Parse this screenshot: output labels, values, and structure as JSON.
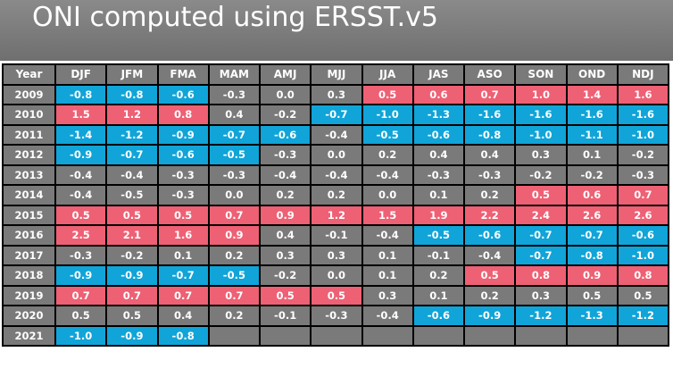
{
  "title": "ONI computed using ERSST.v5",
  "colors": {
    "cold": "#10a4d8",
    "warm": "#ee6074",
    "neutral": "#7a7a7a"
  },
  "table": {
    "year_header": "Year",
    "seasons": [
      "DJF",
      "JFM",
      "FMA",
      "MAM",
      "AMJ",
      "MJJ",
      "JJA",
      "JAS",
      "ASO",
      "SON",
      "OND",
      "NDJ"
    ],
    "rows": [
      {
        "year": "2009",
        "values": [
          "-0.8",
          "-0.8",
          "-0.6",
          "-0.3",
          "0.0",
          "0.3",
          "0.5",
          "0.6",
          "0.7",
          "1.0",
          "1.4",
          "1.6"
        ],
        "phase": [
          "cold",
          "cold",
          "cold",
          "neutral",
          "neutral",
          "neutral",
          "warm",
          "warm",
          "warm",
          "warm",
          "warm",
          "warm"
        ]
      },
      {
        "year": "2010",
        "values": [
          "1.5",
          "1.2",
          "0.8",
          "0.4",
          "-0.2",
          "-0.7",
          "-1.0",
          "-1.3",
          "-1.6",
          "-1.6",
          "-1.6",
          "-1.6"
        ],
        "phase": [
          "warm",
          "warm",
          "warm",
          "neutral",
          "neutral",
          "cold",
          "cold",
          "cold",
          "cold",
          "cold",
          "cold",
          "cold"
        ]
      },
      {
        "year": "2011",
        "values": [
          "-1.4",
          "-1.2",
          "-0.9",
          "-0.7",
          "-0.6",
          "-0.4",
          "-0.5",
          "-0.6",
          "-0.8",
          "-1.0",
          "-1.1",
          "-1.0"
        ],
        "phase": [
          "cold",
          "cold",
          "cold",
          "cold",
          "cold",
          "neutral",
          "cold",
          "cold",
          "cold",
          "cold",
          "cold",
          "cold"
        ]
      },
      {
        "year": "2012",
        "values": [
          "-0.9",
          "-0.7",
          "-0.6",
          "-0.5",
          "-0.3",
          "0.0",
          "0.2",
          "0.4",
          "0.4",
          "0.3",
          "0.1",
          "-0.2"
        ],
        "phase": [
          "cold",
          "cold",
          "cold",
          "cold",
          "neutral",
          "neutral",
          "neutral",
          "neutral",
          "neutral",
          "neutral",
          "neutral",
          "neutral"
        ]
      },
      {
        "year": "2013",
        "values": [
          "-0.4",
          "-0.4",
          "-0.3",
          "-0.3",
          "-0.4",
          "-0.4",
          "-0.4",
          "-0.3",
          "-0.3",
          "-0.2",
          "-0.2",
          "-0.3"
        ],
        "phase": [
          "neutral",
          "neutral",
          "neutral",
          "neutral",
          "neutral",
          "neutral",
          "neutral",
          "neutral",
          "neutral",
          "neutral",
          "neutral",
          "neutral"
        ]
      },
      {
        "year": "2014",
        "values": [
          "-0.4",
          "-0.5",
          "-0.3",
          "0.0",
          "0.2",
          "0.2",
          "0.0",
          "0.1",
          "0.2",
          "0.5",
          "0.6",
          "0.7"
        ],
        "phase": [
          "neutral",
          "neutral",
          "neutral",
          "neutral",
          "neutral",
          "neutral",
          "neutral",
          "neutral",
          "neutral",
          "warm",
          "warm",
          "warm"
        ]
      },
      {
        "year": "2015",
        "values": [
          "0.5",
          "0.5",
          "0.5",
          "0.7",
          "0.9",
          "1.2",
          "1.5",
          "1.9",
          "2.2",
          "2.4",
          "2.6",
          "2.6"
        ],
        "phase": [
          "warm",
          "warm",
          "warm",
          "warm",
          "warm",
          "warm",
          "warm",
          "warm",
          "warm",
          "warm",
          "warm",
          "warm"
        ]
      },
      {
        "year": "2016",
        "values": [
          "2.5",
          "2.1",
          "1.6",
          "0.9",
          "0.4",
          "-0.1",
          "-0.4",
          "-0.5",
          "-0.6",
          "-0.7",
          "-0.7",
          "-0.6"
        ],
        "phase": [
          "warm",
          "warm",
          "warm",
          "warm",
          "neutral",
          "neutral",
          "neutral",
          "cold",
          "cold",
          "cold",
          "cold",
          "cold"
        ]
      },
      {
        "year": "2017",
        "values": [
          "-0.3",
          "-0.2",
          "0.1",
          "0.2",
          "0.3",
          "0.3",
          "0.1",
          "-0.1",
          "-0.4",
          "-0.7",
          "-0.8",
          "-1.0"
        ],
        "phase": [
          "neutral",
          "neutral",
          "neutral",
          "neutral",
          "neutral",
          "neutral",
          "neutral",
          "neutral",
          "neutral",
          "cold",
          "cold",
          "cold"
        ]
      },
      {
        "year": "2018",
        "values": [
          "-0.9",
          "-0.9",
          "-0.7",
          "-0.5",
          "-0.2",
          "0.0",
          "0.1",
          "0.2",
          "0.5",
          "0.8",
          "0.9",
          "0.8"
        ],
        "phase": [
          "cold",
          "cold",
          "cold",
          "cold",
          "neutral",
          "neutral",
          "neutral",
          "neutral",
          "warm",
          "warm",
          "warm",
          "warm"
        ]
      },
      {
        "year": "2019",
        "values": [
          "0.7",
          "0.7",
          "0.7",
          "0.7",
          "0.5",
          "0.5",
          "0.3",
          "0.1",
          "0.2",
          "0.3",
          "0.5",
          "0.5"
        ],
        "phase": [
          "warm",
          "warm",
          "warm",
          "warm",
          "warm",
          "warm",
          "neutral",
          "neutral",
          "neutral",
          "neutral",
          "neutral",
          "neutral"
        ]
      },
      {
        "year": "2020",
        "values": [
          "0.5",
          "0.5",
          "0.4",
          "0.2",
          "-0.1",
          "-0.3",
          "-0.4",
          "-0.6",
          "-0.9",
          "-1.2",
          "-1.3",
          "-1.2"
        ],
        "phase": [
          "neutral",
          "neutral",
          "neutral",
          "neutral",
          "neutral",
          "neutral",
          "neutral",
          "cold",
          "cold",
          "cold",
          "cold",
          "cold"
        ]
      },
      {
        "year": "2021",
        "values": [
          "-1.0",
          "-0.9",
          "-0.8",
          "",
          "",
          "",
          "",
          "",
          "",
          "",
          "",
          ""
        ],
        "phase": [
          "cold",
          "cold",
          "cold",
          "empty",
          "empty",
          "empty",
          "empty",
          "empty",
          "empty",
          "empty",
          "empty",
          "empty"
        ]
      }
    ]
  }
}
